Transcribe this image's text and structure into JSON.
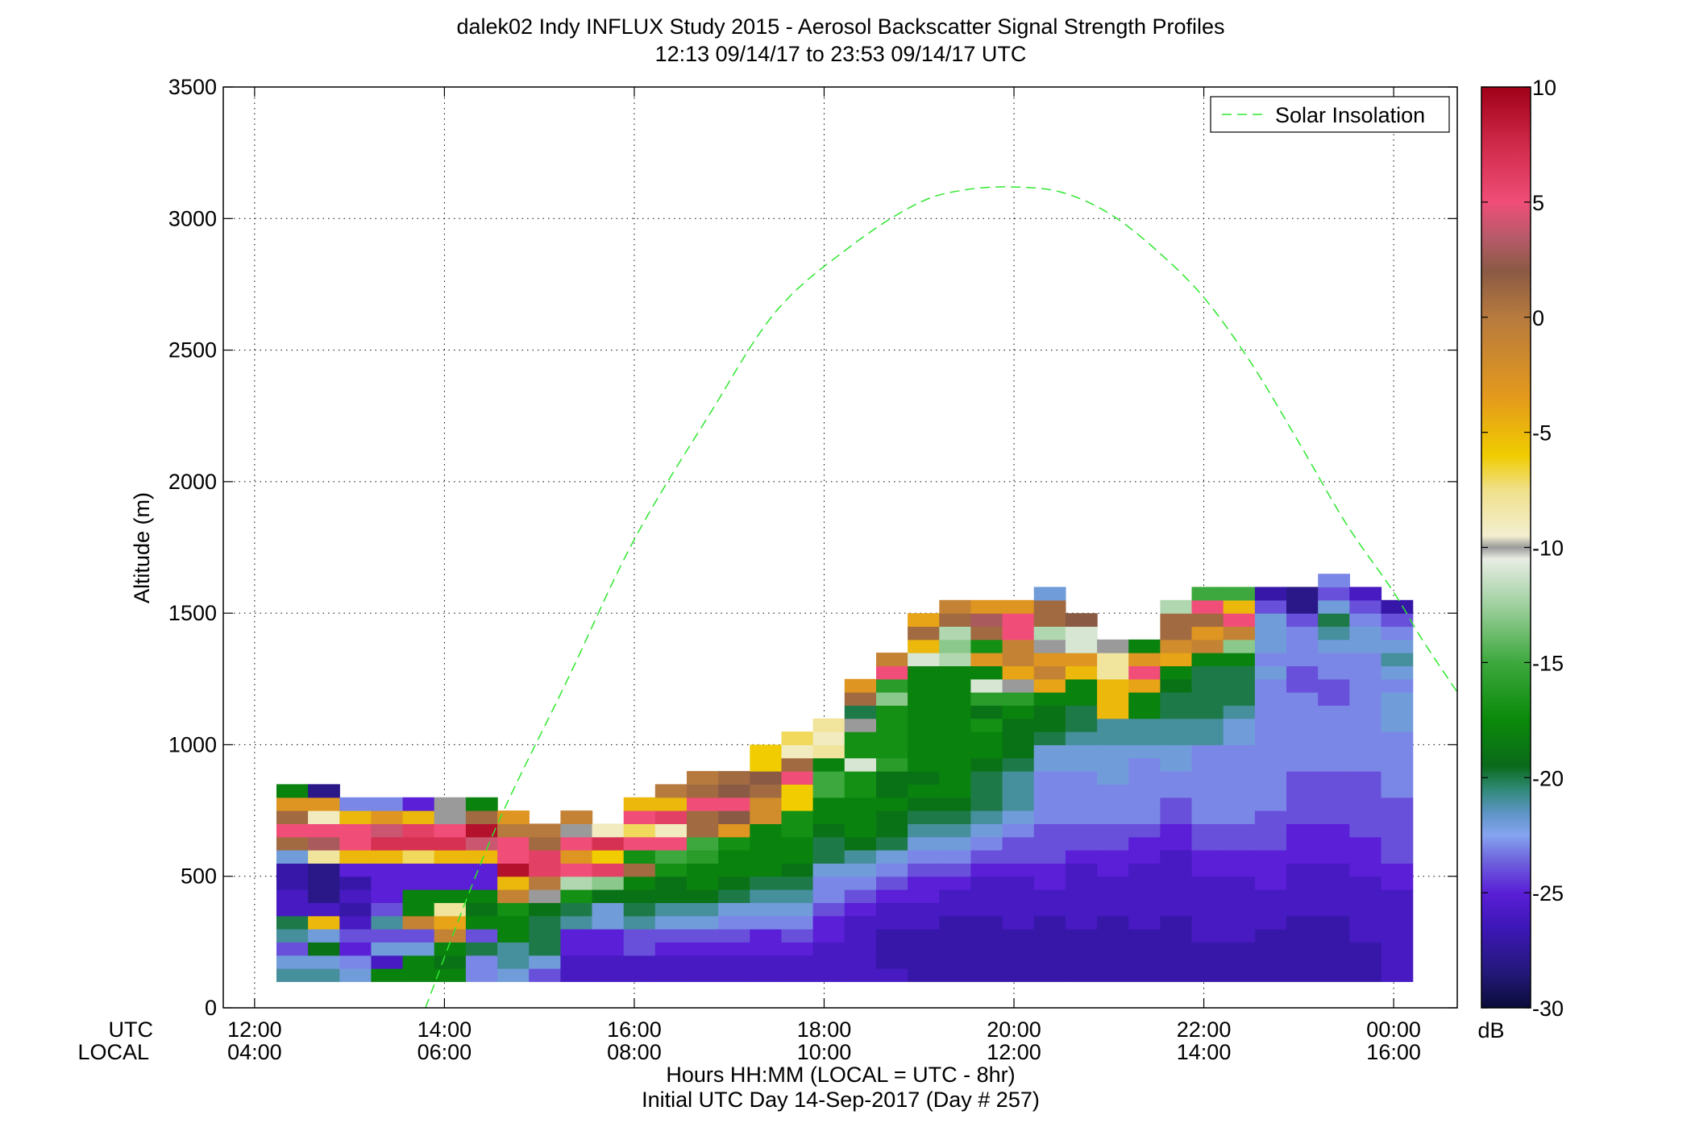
{
  "chart_data": {
    "type": "heatmap",
    "title": "dalek02 Indy INFLUX Study 2015 - Aerosol Backscatter Signal Strength Profiles",
    "subtitle": "12:13 09/14/17 to 23:53 09/14/17  UTC",
    "xlabel": "Hours HH:MM  (LOCAL = UTC - 8hr)",
    "xlabel2": "Initial UTC Day 14-Sep-2017 (Day # 257)",
    "ylabel": "Altitude (m)",
    "x_row_label_utc": "UTC",
    "x_row_label_local": "LOCAL",
    "xlim_hours_utc": [
      11.67,
      24.67
    ],
    "ylim": [
      0,
      3500
    ],
    "grid": true,
    "legend_position": "top-right",
    "x_ticks": [
      {
        "hour": 12,
        "utc": "12:00",
        "local": "04:00"
      },
      {
        "hour": 14,
        "utc": "14:00",
        "local": "06:00"
      },
      {
        "hour": 16,
        "utc": "16:00",
        "local": "08:00"
      },
      {
        "hour": 18,
        "utc": "18:00",
        "local": "10:00"
      },
      {
        "hour": 20,
        "utc": "20:00",
        "local": "12:00"
      },
      {
        "hour": 22,
        "utc": "22:00",
        "local": "14:00"
      },
      {
        "hour": 24,
        "utc": "00:00",
        "local": "16:00"
      }
    ],
    "y_ticks": [
      {
        "value": 0,
        "label": "0"
      },
      {
        "value": 500,
        "label": "500"
      },
      {
        "value": 1000,
        "label": "1000"
      },
      {
        "value": 1500,
        "label": "1500"
      },
      {
        "value": 2000,
        "label": "2000"
      },
      {
        "value": 2500,
        "label": "2500"
      },
      {
        "value": 3000,
        "label": "3000"
      },
      {
        "value": 3500,
        "label": "3500"
      }
    ],
    "colorbar": {
      "label": "dB",
      "range": [
        -30,
        10
      ],
      "ticks": [
        {
          "value": 10,
          "label": "10"
        },
        {
          "value": 5,
          "label": "5"
        },
        {
          "value": 0,
          "label": "0"
        },
        {
          "value": -5,
          "label": "-5"
        },
        {
          "value": -10,
          "label": "-10"
        },
        {
          "value": -15,
          "label": "-15"
        },
        {
          "value": -20,
          "label": "-20"
        },
        {
          "value": -25,
          "label": "-25"
        },
        {
          "value": -30,
          "label": "-30"
        }
      ],
      "stops": [
        {
          "value": -30,
          "color": "#0b0c3a"
        },
        {
          "value": -28.5,
          "color": "#231878"
        },
        {
          "value": -26.5,
          "color": "#3d17b8"
        },
        {
          "value": -25,
          "color": "#5a1fd6"
        },
        {
          "value": -23.5,
          "color": "#7069de"
        },
        {
          "value": -22.5,
          "color": "#86a4f0"
        },
        {
          "value": -21.5,
          "color": "#5c94c4"
        },
        {
          "value": -20.5,
          "color": "#2f8a76"
        },
        {
          "value": -19.5,
          "color": "#0a6a1a"
        },
        {
          "value": -17.5,
          "color": "#0a8a0a"
        },
        {
          "value": -15,
          "color": "#3da83d"
        },
        {
          "value": -12.5,
          "color": "#9fd09f"
        },
        {
          "value": -10.5,
          "color": "#e8ede4"
        },
        {
          "value": -10,
          "color": "#9a9a9a"
        },
        {
          "value": -9.5,
          "color": "#f3eed0"
        },
        {
          "value": -7.5,
          "color": "#f0e08a"
        },
        {
          "value": -6,
          "color": "#f0cc00"
        },
        {
          "value": -3.5,
          "color": "#e49a1c"
        },
        {
          "value": 0,
          "color": "#b77a3e"
        },
        {
          "value": 2,
          "color": "#8a5a44"
        },
        {
          "value": 3.5,
          "color": "#b85a6a"
        },
        {
          "value": 5,
          "color": "#f04e78"
        },
        {
          "value": 7.5,
          "color": "#d02a4a"
        },
        {
          "value": 10,
          "color": "#a00018"
        }
      ]
    },
    "heatmap": {
      "value_units": "dB",
      "time_start_hour_utc": 12.23,
      "time_step_hours": 0.3325,
      "altitude_bin_bottoms_m": [
        100,
        150,
        200,
        250,
        300,
        350,
        400,
        450,
        500,
        550,
        600,
        650,
        700,
        750,
        800,
        850,
        900,
        950,
        1000,
        1050,
        1100,
        1150,
        1200,
        1250,
        1300,
        1350,
        1400,
        1450,
        1500,
        1550,
        1600
      ],
      "altitude_bin_height_m": 50,
      "columns_value_from_bottom_dB": [
        [
          -21,
          -22,
          -24,
          -21,
          -20,
          -26,
          -26,
          -27,
          -27,
          -22,
          1,
          5,
          1,
          -3,
          -18
        ],
        [
          -21,
          -22,
          -19,
          -22,
          -5,
          -26,
          -28,
          -28,
          -28,
          -8,
          3,
          5,
          -9,
          -3,
          -28
        ],
        [
          -22,
          -23,
          -25,
          -24,
          -26,
          -27,
          -26,
          -27,
          -25,
          -5,
          5,
          5,
          -5,
          -23
        ],
        [
          -18,
          -26,
          -22,
          -24,
          -21,
          -24,
          -25,
          -25,
          -25,
          -5,
          7,
          4,
          -3,
          -23
        ],
        [
          -18,
          -18,
          -22,
          -24,
          -1,
          -18,
          -18,
          -25,
          -25,
          -7,
          7,
          6,
          -5,
          -25
        ],
        [
          -18,
          -19,
          -18,
          -1,
          -4,
          -8,
          -18,
          -25,
          -25,
          -5,
          7,
          5,
          -10,
          -10
        ],
        [
          -23,
          -23,
          -20,
          -24,
          -18,
          -19,
          -18,
          -25,
          -25,
          -5,
          4,
          9,
          1,
          -18
        ],
        [
          -22,
          -21,
          -21,
          -18,
          -18,
          -17,
          -1,
          -5,
          9,
          5,
          5,
          0,
          -3
        ],
        [
          -24,
          -22,
          -20,
          -20,
          -20,
          -19,
          -10,
          0,
          6,
          6,
          1,
          0
        ],
        [
          -26,
          -26,
          -25,
          -25,
          -21,
          -20,
          -17,
          -12,
          5,
          -3,
          5,
          -10,
          -1
        ],
        [
          -26,
          -26,
          -25,
          -25,
          -22,
          -22,
          -19,
          -13,
          6,
          -6,
          7,
          -9
        ],
        [
          -26,
          -26,
          -24,
          -24,
          -21,
          -20,
          -19,
          -18,
          1,
          -17,
          5,
          -7,
          5,
          -5
        ],
        [
          -26,
          -26,
          -25,
          -24,
          -22,
          -21,
          -19,
          -19,
          -17,
          -15,
          5,
          -9,
          6,
          -5,
          0
        ],
        [
          -26,
          -26,
          -25,
          -24,
          -22,
          -21,
          -19,
          -18,
          -18,
          -16,
          -15,
          1,
          1,
          5,
          1,
          0
        ],
        [
          -26,
          -26,
          -25,
          -24,
          -23,
          -22,
          -20,
          -19,
          -18,
          -18,
          -17,
          -3,
          2,
          5,
          2,
          1
        ],
        [
          -26,
          -26,
          -25,
          -25,
          -23,
          -22,
          -21,
          -20,
          -18,
          -18,
          -18,
          -18,
          -2,
          -2,
          1,
          2,
          -6,
          -6
        ],
        [
          -26,
          -26,
          -25,
          -24,
          -23,
          -22,
          -21,
          -20,
          -19,
          -18,
          -18,
          -17,
          -17,
          -6,
          -6,
          5,
          1,
          -9,
          -7
        ],
        [
          -26,
          -26,
          -26,
          -25,
          -25,
          -24,
          -23,
          -23,
          -22,
          -20,
          -20,
          -19,
          -18,
          -18,
          -15,
          -15,
          -18,
          -8,
          -9,
          -8
        ],
        [
          -26,
          -26,
          -26,
          -26,
          -26,
          -25,
          -24,
          -23,
          -22,
          -21,
          -19,
          -18,
          -18,
          -18,
          -17,
          -17,
          -11,
          -17,
          -17,
          -10,
          -20,
          1,
          -3
        ],
        [
          -26,
          -27,
          -27,
          -27,
          -26,
          -26,
          -25,
          -24,
          -23,
          -22,
          -20,
          -19,
          -19,
          -18,
          -19,
          -19,
          -16,
          -17,
          -17,
          -17,
          -17,
          -13,
          -16,
          5,
          -1
        ],
        [
          -27,
          -27,
          -27,
          -27,
          -26,
          -26,
          -25,
          -25,
          -24,
          -23,
          -22,
          -21,
          -20,
          -19,
          -18,
          -19,
          -18,
          -18,
          -18,
          -18,
          -18,
          -18,
          -18,
          -18,
          -11,
          -5,
          1,
          -4
        ],
        [
          -27,
          -27,
          -27,
          -27,
          -27,
          -26,
          -26,
          -25,
          -24,
          -23,
          -22,
          -21,
          -20,
          -19,
          -18,
          -18,
          -18,
          -18,
          -18,
          -18,
          -18,
          -18,
          -18,
          -18,
          -12,
          -13,
          -12,
          1,
          -1
        ],
        [
          -27,
          -27,
          -27,
          -27,
          -27,
          -26,
          -26,
          -26,
          -25,
          -24,
          -23,
          -22,
          -21,
          -20,
          -20,
          -20,
          -19,
          -18,
          -18,
          -17,
          -19,
          -16,
          -11,
          -18,
          -3,
          -17,
          1,
          3,
          -3
        ],
        [
          -27,
          -27,
          -27,
          -27,
          -26,
          -26,
          -26,
          -26,
          -25,
          -24,
          -24,
          -23,
          -22,
          -21,
          -21,
          -21,
          -20,
          -19,
          -19,
          -19,
          -18,
          -16,
          -10,
          -4,
          -1,
          -1,
          5,
          5,
          -3
        ],
        [
          -27,
          -27,
          -27,
          -27,
          -27,
          -26,
          -26,
          -25,
          -25,
          -24,
          -24,
          -24,
          -23,
          -23,
          -23,
          -23,
          -22,
          -22,
          -20,
          -19,
          -19,
          -18,
          -4,
          -1,
          -3,
          -10,
          -12,
          1,
          1,
          -22
        ],
        [
          -27,
          -27,
          -27,
          -27,
          -26,
          -26,
          -26,
          -26,
          -26,
          -25,
          -24,
          -24,
          -23,
          -23,
          -23,
          -23,
          -22,
          -22,
          -21,
          -20,
          -20,
          -18,
          -18,
          -5,
          -3,
          -11,
          -11,
          2
        ],
        [
          -27,
          -27,
          -27,
          -27,
          -27,
          -26,
          -26,
          -26,
          -25,
          -25,
          -24,
          -24,
          -23,
          -23,
          -23,
          -22,
          -22,
          -22,
          -21,
          -21,
          -5,
          -5,
          -5,
          -8,
          -8,
          -10
        ],
        [
          -27,
          -27,
          -27,
          -27,
          -26,
          -26,
          -26,
          -26,
          -26,
          -25,
          -25,
          -24,
          -23,
          -23,
          -23,
          -23,
          -23,
          -22,
          -21,
          -21,
          -18,
          -18,
          -4,
          5,
          -3,
          -18
        ],
        [
          -27,
          -27,
          -27,
          -27,
          -27,
          -26,
          -26,
          -26,
          -26,
          -26,
          -25,
          -25,
          -24,
          -24,
          -23,
          -23,
          -22,
          -22,
          -21,
          -21,
          -20,
          -20,
          -19,
          -18,
          -4,
          -2,
          1,
          1,
          -12
        ],
        [
          -27,
          -27,
          -27,
          -26,
          -26,
          -26,
          -26,
          -26,
          -25,
          -25,
          -24,
          -24,
          -23,
          -23,
          -23,
          -23,
          -23,
          -23,
          -21,
          -21,
          -20,
          -20,
          -20,
          -20,
          -18,
          -1,
          -3,
          1,
          5,
          -15
        ],
        [
          -27,
          -27,
          -27,
          -26,
          -26,
          -26,
          -26,
          -26,
          -25,
          -25,
          -24,
          -24,
          -23,
          -23,
          -23,
          -23,
          -23,
          -23,
          -22,
          -22,
          -21,
          -20,
          -20,
          -20,
          -18,
          -13,
          -1,
          5,
          -5,
          -15
        ],
        [
          -27,
          -27,
          -27,
          -27,
          -26,
          -26,
          -26,
          -25,
          -25,
          -25,
          -24,
          -24,
          -24,
          -23,
          -23,
          -23,
          -23,
          -23,
          -23,
          -23,
          -23,
          -23,
          -23,
          -22,
          -23,
          -22,
          -22,
          -22,
          -24,
          -27
        ],
        [
          -27,
          -27,
          -27,
          -27,
          -27,
          -26,
          -26,
          -26,
          -26,
          -25,
          -25,
          -25,
          -24,
          -24,
          -24,
          -24,
          -23,
          -23,
          -23,
          -23,
          -23,
          -23,
          -24,
          -24,
          -23,
          -23,
          -23,
          -24,
          -28,
          -28
        ],
        [
          -27,
          -27,
          -27,
          -27,
          -27,
          -26,
          -26,
          -26,
          -26,
          -25,
          -25,
          -25,
          -24,
          -24,
          -24,
          -24,
          -23,
          -23,
          -23,
          -23,
          -23,
          -24,
          -24,
          -23,
          -23,
          -22,
          -21,
          -20,
          -22,
          -24,
          -23
        ],
        [
          -27,
          -27,
          -27,
          -26,
          -26,
          -26,
          -26,
          -26,
          -25,
          -25,
          -25,
          -24,
          -24,
          -24,
          -24,
          -24,
          -23,
          -23,
          -23,
          -23,
          -23,
          -23,
          -23,
          -23,
          -23,
          -22,
          -22,
          -23,
          -24,
          -26
        ],
        [
          -26,
          -26,
          -26,
          -26,
          -26,
          -26,
          -26,
          -25,
          -25,
          -24,
          -24,
          -24,
          -24,
          -24,
          -23,
          -23,
          -23,
          -23,
          -23,
          -22,
          -22,
          -22,
          -23,
          -22,
          -21,
          -22,
          -23,
          -24,
          -27
        ]
      ]
    },
    "series": [
      {
        "name": "Solar Insolation",
        "color": "#2ee82e",
        "style": "dashed",
        "x_hour_utc": [
          13.8,
          14.5,
          15.3,
          16.0,
          16.8,
          17.5,
          18.3,
          19.0,
          19.5,
          20.0,
          20.5,
          21.0,
          21.5,
          22.0,
          22.5,
          23.0,
          23.5,
          24.0,
          24.3,
          24.67
        ],
        "y": [
          0,
          650,
          1250,
          1780,
          2260,
          2650,
          2900,
          3060,
          3110,
          3120,
          3100,
          3020,
          2880,
          2700,
          2450,
          2150,
          1840,
          1580,
          1400,
          1200
        ]
      }
    ]
  }
}
